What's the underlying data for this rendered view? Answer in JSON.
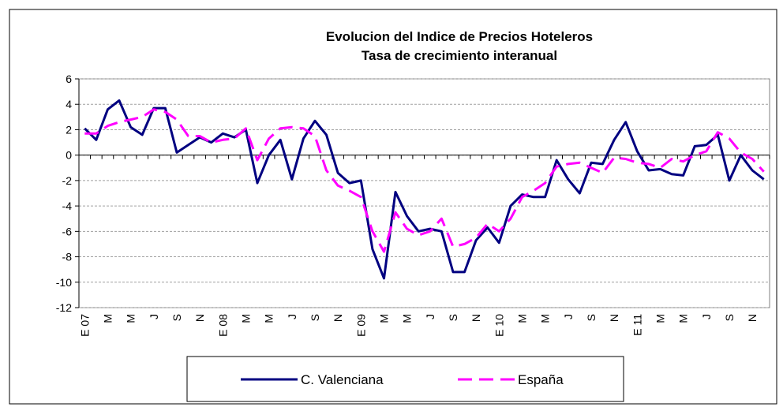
{
  "chart_data": {
    "type": "line",
    "title": "Evolucion del Indice de Precios Hoteleros",
    "subtitle": "Tasa de crecimiento interanual",
    "categories": [
      "E 07",
      null,
      "M",
      null,
      "M",
      null,
      "J",
      null,
      "S",
      null,
      "N",
      null,
      "E 08",
      null,
      "M",
      null,
      "M",
      null,
      "J",
      null,
      "S",
      null,
      "N",
      null,
      "E 09",
      null,
      "M",
      null,
      "M",
      null,
      "J",
      null,
      "S",
      null,
      "N",
      null,
      "E 10",
      null,
      "M",
      null,
      "M",
      null,
      "J",
      null,
      "S",
      null,
      "N",
      null,
      "E 11",
      null,
      "M",
      null,
      "M",
      null,
      "J",
      null,
      "S",
      null,
      "N",
      null
    ],
    "series": [
      {
        "name": "C. Valenciana",
        "color": "#000080",
        "dash": false,
        "values": [
          2.1,
          1.2,
          3.6,
          4.3,
          2.2,
          1.6,
          3.7,
          3.7,
          0.2,
          0.8,
          1.4,
          1.0,
          1.7,
          1.4,
          2.0,
          -2.2,
          0.0,
          1.2,
          -1.9,
          1.3,
          2.7,
          1.6,
          -1.4,
          -2.2,
          -2.0,
          -7.4,
          -9.7,
          -2.9,
          -4.8,
          -6.0,
          -5.8,
          -6.0,
          -9.2,
          -9.2,
          -6.7,
          -5.7,
          -6.9,
          -4.0,
          -3.1,
          -3.3,
          -3.3,
          -0.4,
          -1.9,
          -3.0,
          -0.6,
          -0.7,
          1.2,
          2.6,
          0.3,
          -1.2,
          -1.1,
          -1.5,
          -1.6,
          0.7,
          0.8,
          1.6,
          -2.0,
          0.0,
          -1.2,
          -1.9
        ]
      },
      {
        "name": "España",
        "color": "#ff00ff",
        "dash": true,
        "values": [
          1.7,
          1.7,
          2.3,
          2.6,
          2.8,
          3.0,
          3.6,
          3.4,
          2.8,
          1.5,
          1.5,
          1.0,
          1.2,
          1.3,
          2.1,
          -0.4,
          1.3,
          2.1,
          2.2,
          2.1,
          1.5,
          -1.2,
          -2.4,
          -2.8,
          -3.3,
          -6.0,
          -7.6,
          -4.5,
          -5.8,
          -6.3,
          -6.0,
          -5.0,
          -7.2,
          -7.0,
          -6.5,
          -5.4,
          -6.0,
          -5.0,
          -3.3,
          -2.8,
          -2.2,
          -0.9,
          -0.7,
          -0.6,
          -1.0,
          -1.4,
          -0.2,
          -0.3,
          -0.6,
          -0.7,
          -1.0,
          -0.3,
          -0.5,
          0.0,
          0.3,
          1.8,
          1.3,
          0.2,
          -0.3,
          -1.3
        ]
      }
    ],
    "ylim": [
      -12,
      6
    ],
    "yticks": [
      -12,
      -10,
      -8,
      -6,
      -4,
      -2,
      0,
      2,
      4,
      6
    ],
    "grid": true,
    "legend": "bottom"
  }
}
